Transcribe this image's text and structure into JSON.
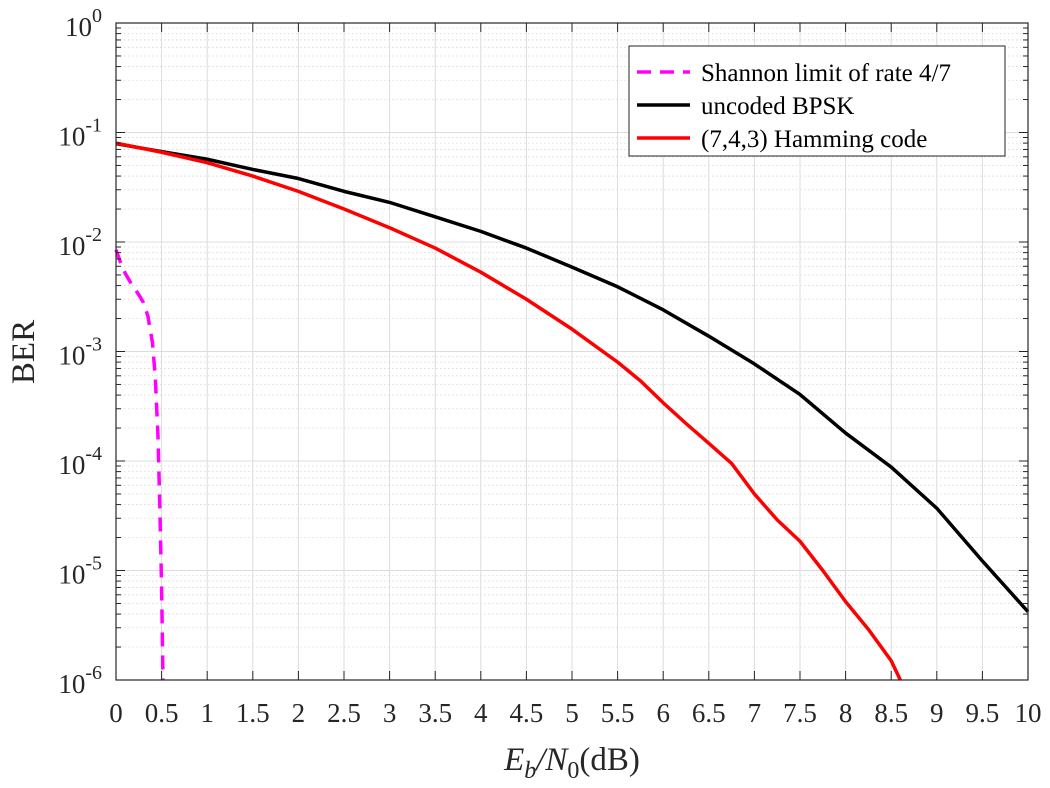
{
  "chart_data": {
    "type": "line",
    "title": "",
    "xlabel": {
      "main": "E",
      "sub1": "b",
      "slash": "/N",
      "sub2": "0",
      "unit": "(dB)"
    },
    "ylabel": "BER",
    "xlim": [
      0,
      10
    ],
    "ylim": [
      1e-06,
      1
    ],
    "yscale": "log",
    "grid": true,
    "minor_grid": true,
    "legend_position": "top-right",
    "x_ticks": [
      "0",
      "0.5",
      "1",
      "1.5",
      "2",
      "2.5",
      "3",
      "3.5",
      "4",
      "4.5",
      "5",
      "5.5",
      "6",
      "6.5",
      "7",
      "7.5",
      "8",
      "8.5",
      "9",
      "9.5",
      "10"
    ],
    "y_ticks": [
      {
        "base": "10",
        "exp": "0"
      },
      {
        "base": "10",
        "exp": "-1"
      },
      {
        "base": "10",
        "exp": "-2"
      },
      {
        "base": "10",
        "exp": "-3"
      },
      {
        "base": "10",
        "exp": "-4"
      },
      {
        "base": "10",
        "exp": "-5"
      },
      {
        "base": "10",
        "exp": "-6"
      }
    ],
    "series": [
      {
        "name": "Shannon limit of rate 4/7",
        "color": "#ff00ff",
        "style": "dashed",
        "x": [
          0.0,
          0.05,
          0.1,
          0.15,
          0.2,
          0.25,
          0.3,
          0.35,
          0.4,
          0.43,
          0.46,
          0.48,
          0.5,
          0.51,
          0.515
        ],
        "y": [
          0.0085,
          0.0065,
          0.0052,
          0.0044,
          0.0038,
          0.0033,
          0.0028,
          0.0021,
          0.0012,
          0.0006,
          0.00017,
          4e-05,
          7e-06,
          2e-06,
          1e-06
        ]
      },
      {
        "name": "uncoded BPSK",
        "color": "#000000",
        "style": "solid",
        "x": [
          0,
          0.5,
          1,
          1.5,
          2,
          2.5,
          3,
          3.5,
          4,
          4.5,
          5,
          5.5,
          6,
          6.5,
          7,
          7.5,
          8,
          8.5,
          9,
          9.5,
          10
        ],
        "y": [
          0.079,
          0.067,
          0.057,
          0.046,
          0.038,
          0.029,
          0.023,
          0.017,
          0.0125,
          0.0088,
          0.0059,
          0.0039,
          0.0024,
          0.00138,
          0.00077,
          0.000405,
          0.00018,
          8.8e-05,
          3.7e-05,
          1.22e-05,
          4.2e-06
        ]
      },
      {
        "name": "(7,4,3) Hamming code",
        "color": "#ff0000",
        "style": "solid",
        "x": [
          0,
          0.5,
          1,
          1.5,
          2,
          2.5,
          3,
          3.5,
          4,
          4.5,
          5,
          5.5,
          5.75,
          6,
          6.25,
          6.5,
          6.75,
          7,
          7.25,
          7.5,
          7.75,
          8,
          8.25,
          8.5,
          8.6
        ],
        "y": [
          0.08,
          0.066,
          0.053,
          0.04,
          0.029,
          0.02,
          0.0135,
          0.0088,
          0.0053,
          0.003,
          0.0016,
          0.0008,
          0.00054,
          0.00034,
          0.00022,
          0.000145,
          9.5e-05,
          5e-05,
          2.9e-05,
          1.85e-05,
          1e-05,
          5.2e-06,
          2.9e-06,
          1.5e-06,
          1e-06
        ]
      }
    ]
  }
}
